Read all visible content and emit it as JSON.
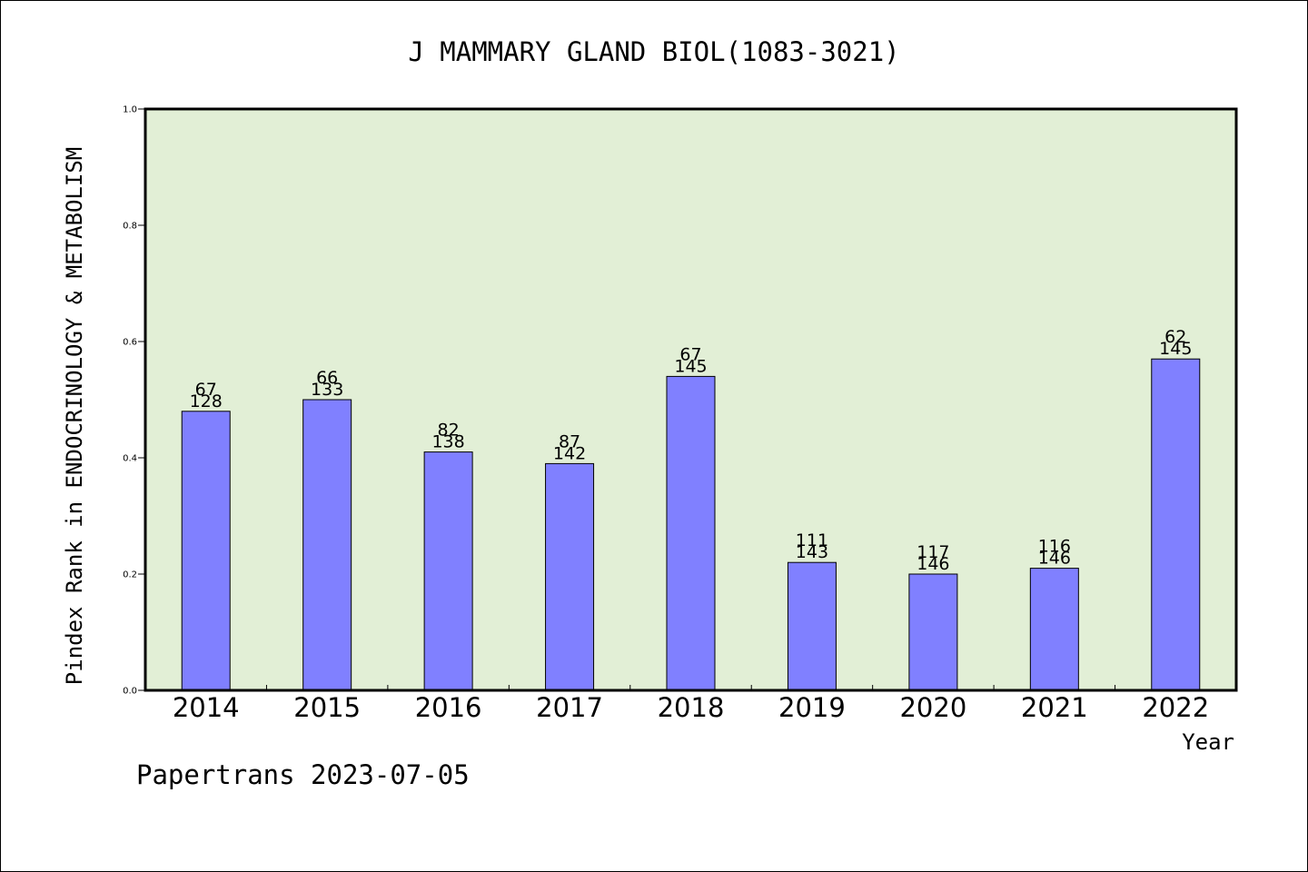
{
  "chart_data": {
    "type": "bar",
    "title": "J MAMMARY GLAND BIOL(1083-3021)",
    "xlabel": "Year",
    "ylabel": "Pindex Rank in ENDOCRINOLOGY & METABOLISM",
    "ylim": [
      0,
      1.0
    ],
    "yticks": [
      "0.0",
      "0.2",
      "0.4",
      "0.6",
      "0.8",
      "1.0"
    ],
    "categories": [
      "2014",
      "2015",
      "2016",
      "2017",
      "2018",
      "2019",
      "2020",
      "2021",
      "2022"
    ],
    "values": [
      0.48,
      0.5,
      0.41,
      0.39,
      0.54,
      0.22,
      0.2,
      0.21,
      0.57
    ],
    "ranks": [
      "67",
      "66",
      "82",
      "87",
      "67",
      "111",
      "117",
      "116",
      "62"
    ],
    "totals": [
      "128",
      "133",
      "138",
      "142",
      "145",
      "143",
      "146",
      "146",
      "145"
    ],
    "colors": {
      "bar": "#8080ff",
      "plot_background": "#e2efd6",
      "axis": "#000000"
    },
    "grid": false
  },
  "footer": {
    "credit": "Papertrans 2023-07-05"
  }
}
